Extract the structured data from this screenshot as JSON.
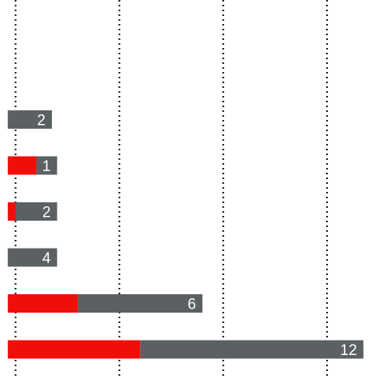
{
  "chart_data": {
    "type": "bar",
    "orientation": "horizontal",
    "stacked": true,
    "xlim": [
      -0.3,
      14.3
    ],
    "grid": "vertical-dotted",
    "gridlines_x": [
      0.3,
      4.3,
      8.3,
      12.3
    ],
    "colors": {
      "red": "#f00f08",
      "grey": "#5b6063",
      "grid": "#111111",
      "label": "#ffffff"
    },
    "rows": [
      {
        "label": "2",
        "red": 0,
        "grey": 1.7
      },
      {
        "label": "1",
        "red": 1.1,
        "grey": 0.8
      },
      {
        "label": "2",
        "red": 0.3,
        "grey": 1.6
      },
      {
        "label": "4",
        "red": 0,
        "grey": 1.9
      },
      {
        "label": "6",
        "red": 2.7,
        "grey": 4.8
      },
      {
        "label": "12",
        "red": 5.1,
        "grey": 8.6
      }
    ]
  }
}
